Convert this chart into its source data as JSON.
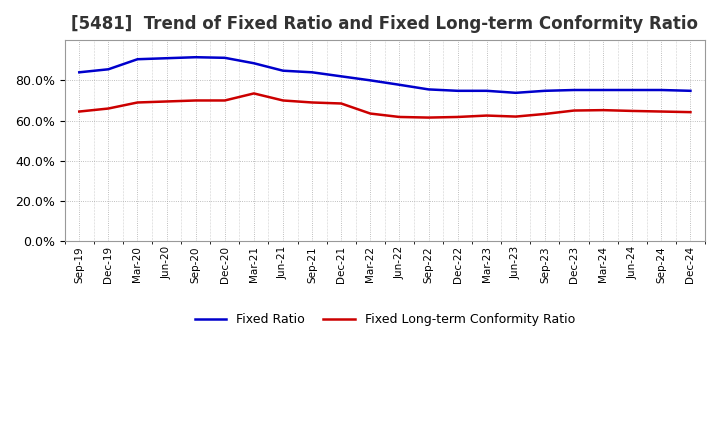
{
  "title": "[5481]  Trend of Fixed Ratio and Fixed Long-term Conformity Ratio",
  "x_labels": [
    "Sep-19",
    "Dec-19",
    "Mar-20",
    "Jun-20",
    "Sep-20",
    "Dec-20",
    "Mar-21",
    "Jun-21",
    "Sep-21",
    "Dec-21",
    "Mar-22",
    "Jun-22",
    "Sep-22",
    "Dec-22",
    "Mar-23",
    "Jun-23",
    "Sep-23",
    "Dec-23",
    "Mar-24",
    "Jun-24",
    "Sep-24",
    "Dec-24"
  ],
  "fixed_ratio": [
    0.84,
    0.855,
    0.905,
    0.91,
    0.915,
    0.912,
    0.885,
    0.848,
    0.84,
    0.82,
    0.8,
    0.778,
    0.755,
    0.748,
    0.748,
    0.738,
    0.748,
    0.752,
    0.752,
    0.752,
    0.752,
    0.748
  ],
  "fixed_lt_ratio": [
    0.645,
    0.66,
    0.69,
    0.695,
    0.7,
    0.7,
    0.735,
    0.7,
    0.69,
    0.685,
    0.635,
    0.618,
    0.615,
    0.618,
    0.625,
    0.62,
    0.633,
    0.65,
    0.652,
    0.648,
    0.645,
    0.642
  ],
  "fixed_ratio_color": "#0000cc",
  "fixed_lt_ratio_color": "#cc0000",
  "ylim": [
    0.0,
    1.0
  ],
  "yticks": [
    0.0,
    0.2,
    0.4,
    0.6,
    0.8
  ],
  "background_color": "#ffffff",
  "grid_color": "#aaaaaa",
  "title_fontsize": 12,
  "legend_labels": [
    "Fixed Ratio",
    "Fixed Long-term Conformity Ratio"
  ]
}
